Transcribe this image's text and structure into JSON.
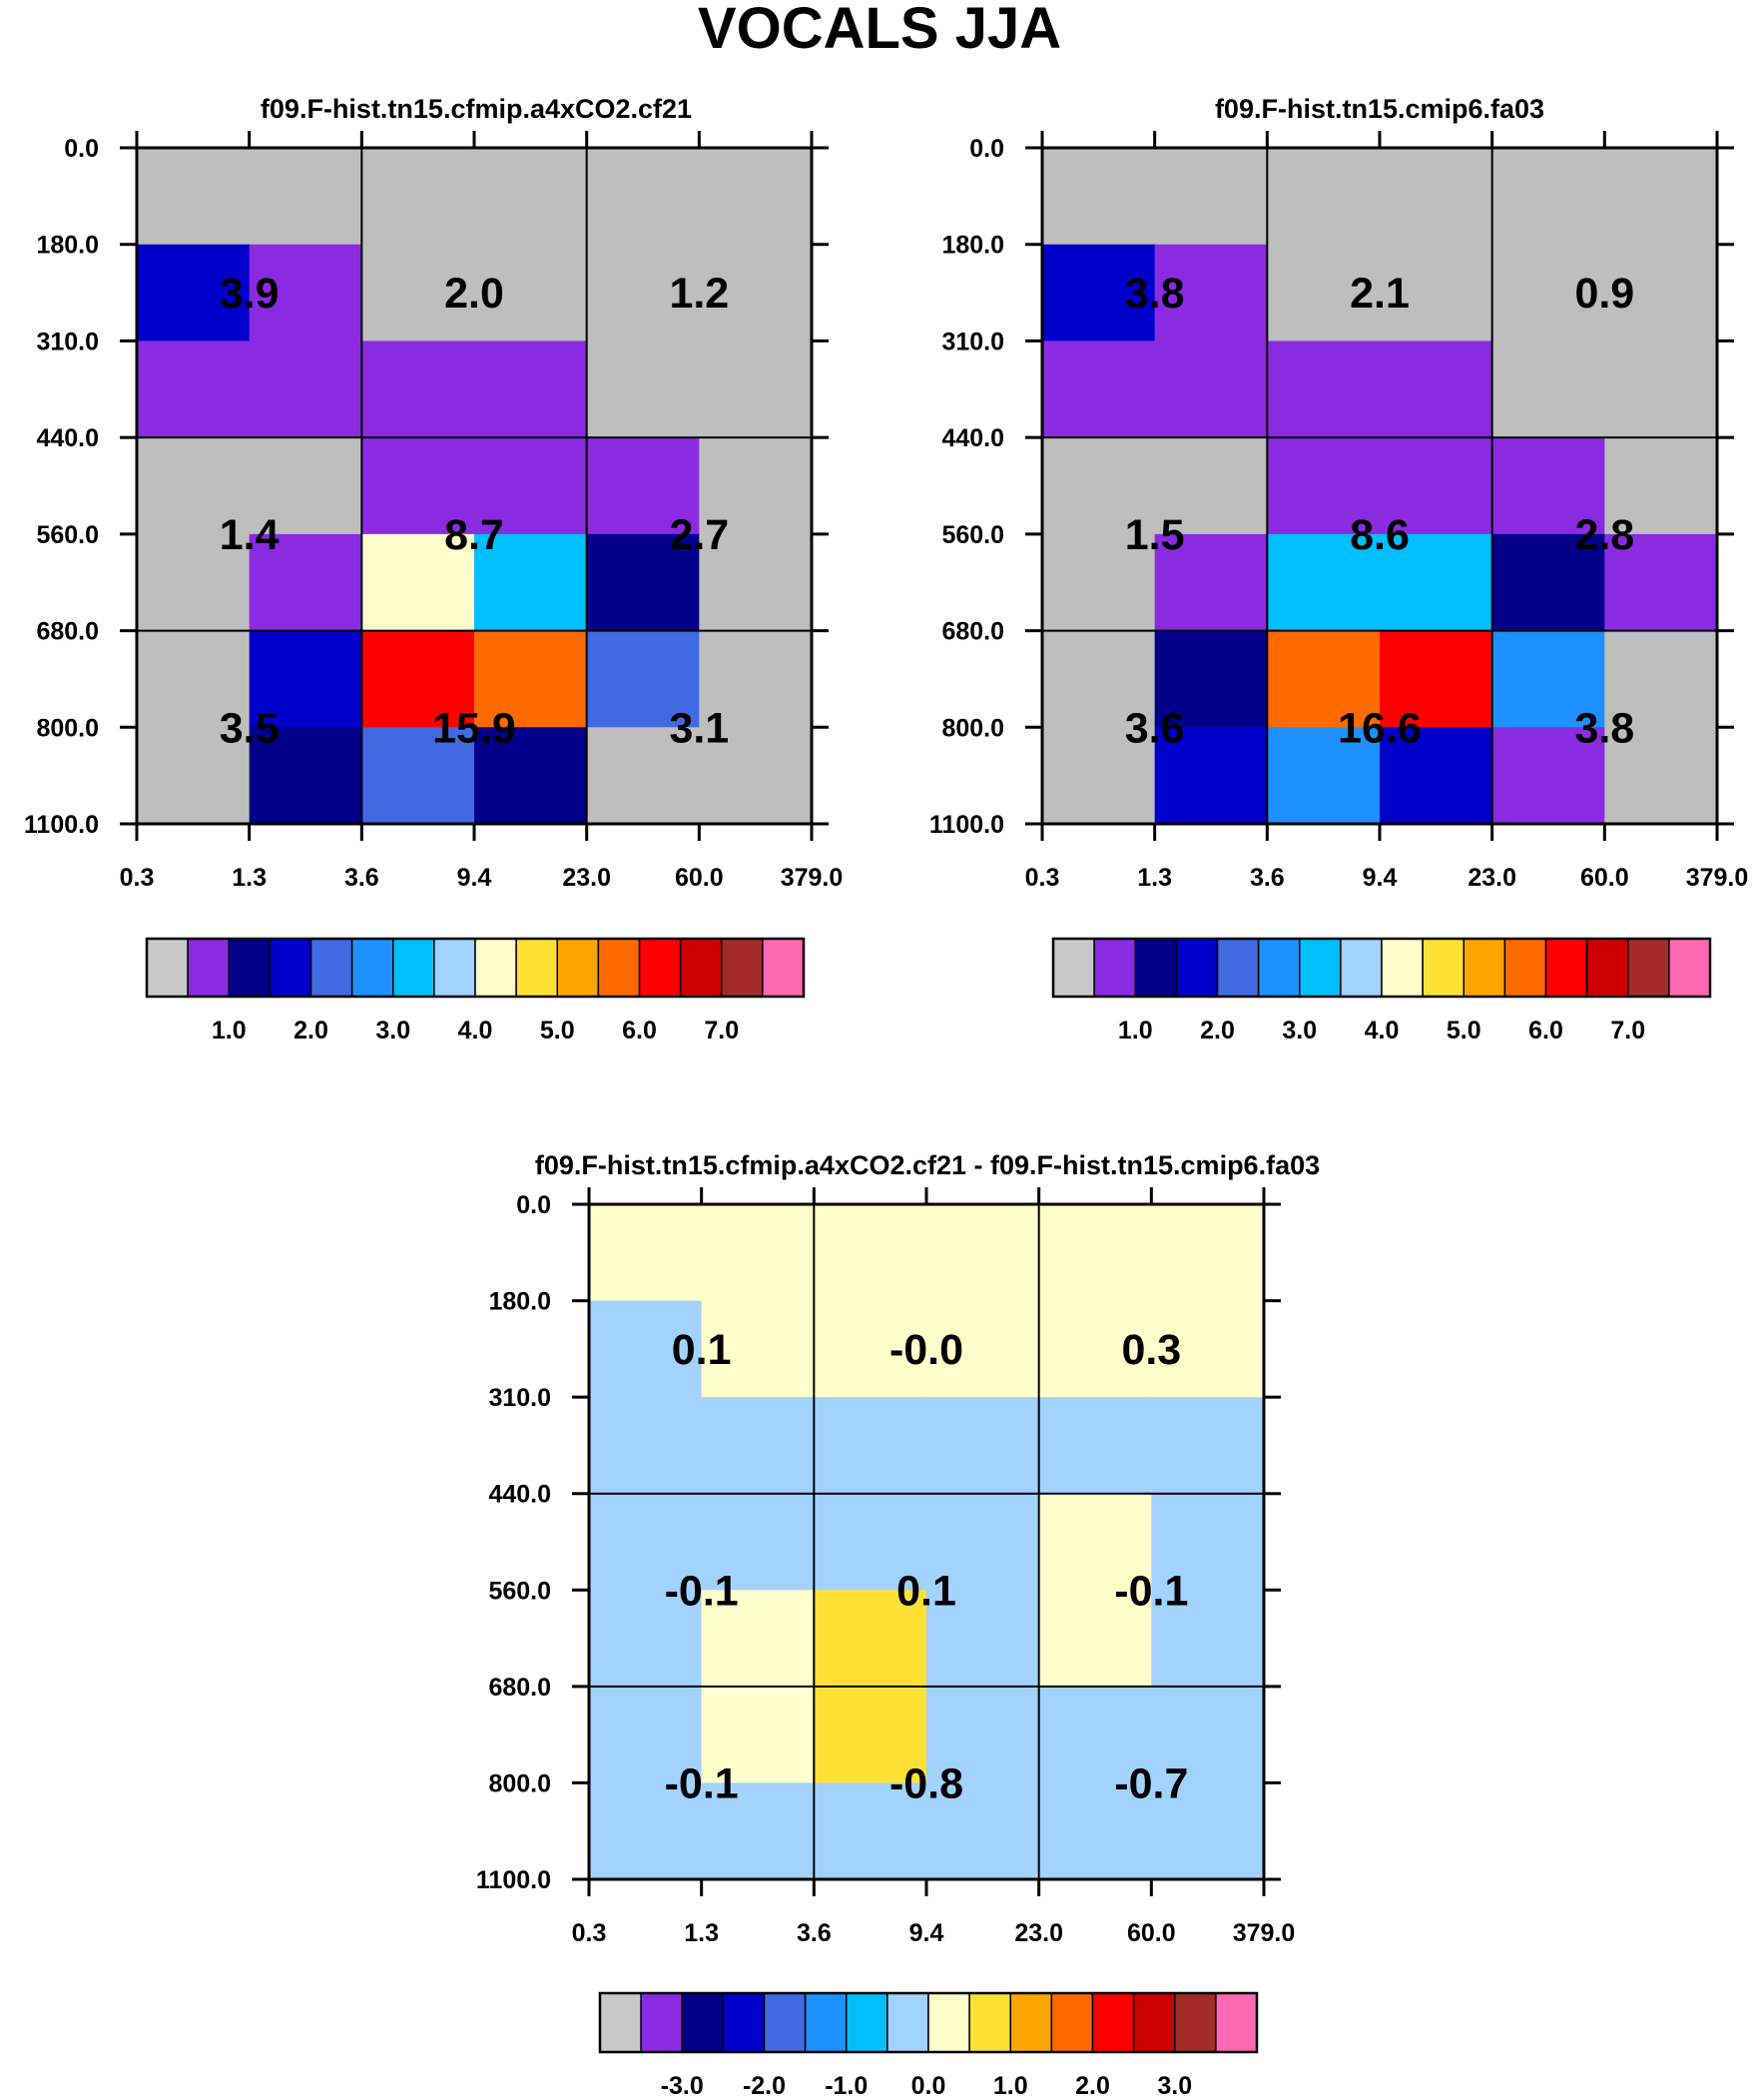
{
  "title": "VOCALS JJA",
  "chart_data": [
    {
      "type": "heatmap",
      "title": "f09.F-hist.tn15.cfmip.a4xCO2.cf21",
      "x_ticks": [
        "0.3",
        "1.3",
        "3.6",
        "9.4",
        "23.0",
        "60.0",
        "379.0"
      ],
      "y_ticks": [
        "0.0",
        "180.0",
        "310.0",
        "440.0",
        "560.0",
        "680.0",
        "800.0",
        "1100.0"
      ],
      "cell_colors": [
        [
          "#bebebe",
          "#bebebe",
          "#bebebe",
          "#bebebe",
          "#bebebe",
          "#bebebe"
        ],
        [
          "#0000cd",
          "#8a2be2",
          "#bebebe",
          "#bebebe",
          "#bebebe",
          "#bebebe"
        ],
        [
          "#8a2be2",
          "#8a2be2",
          "#8a2be2",
          "#8a2be2",
          "#bebebe",
          "#bebebe"
        ],
        [
          "#bebebe",
          "#bebebe",
          "#8a2be2",
          "#8a2be2",
          "#8a2be2",
          "#bebebe"
        ],
        [
          "#bebebe",
          "#8a2be2",
          "#ffffcc",
          "#00bfff",
          "#00008b",
          "#bebebe"
        ],
        [
          "#bebebe",
          "#0000cd",
          "#ff0000",
          "#ff6a00",
          "#4169e1",
          "#bebebe"
        ],
        [
          "#bebebe",
          "#00008b",
          "#4169e1",
          "#00008b",
          "#bebebe",
          "#bebebe"
        ]
      ],
      "box_values": [
        [
          "3.9",
          "2.0",
          "1.2"
        ],
        [
          "1.4",
          "8.7",
          "2.7"
        ],
        [
          "3.5",
          "15.9",
          "3.1"
        ]
      ]
    },
    {
      "type": "heatmap",
      "title": "f09.F-hist.tn15.cmip6.fa03",
      "x_ticks": [
        "0.3",
        "1.3",
        "3.6",
        "9.4",
        "23.0",
        "60.0",
        "379.0"
      ],
      "y_ticks": [
        "0.0",
        "180.0",
        "310.0",
        "440.0",
        "560.0",
        "680.0",
        "800.0",
        "1100.0"
      ],
      "cell_colors": [
        [
          "#bebebe",
          "#bebebe",
          "#bebebe",
          "#bebebe",
          "#bebebe",
          "#bebebe"
        ],
        [
          "#0000cd",
          "#8a2be2",
          "#bebebe",
          "#bebebe",
          "#bebebe",
          "#bebebe"
        ],
        [
          "#8a2be2",
          "#8a2be2",
          "#8a2be2",
          "#8a2be2",
          "#bebebe",
          "#bebebe"
        ],
        [
          "#bebebe",
          "#bebebe",
          "#8a2be2",
          "#8a2be2",
          "#8a2be2",
          "#bebebe"
        ],
        [
          "#bebebe",
          "#8a2be2",
          "#00bfff",
          "#00bfff",
          "#00008b",
          "#8a2be2"
        ],
        [
          "#bebebe",
          "#00008b",
          "#ff6a00",
          "#ff0000",
          "#1e90ff",
          "#bebebe"
        ],
        [
          "#bebebe",
          "#0000cd",
          "#1e90ff",
          "#0000cd",
          "#8a2be2",
          "#bebebe"
        ]
      ],
      "box_values": [
        [
          "3.8",
          "2.1",
          "0.9"
        ],
        [
          "1.5",
          "8.6",
          "2.8"
        ],
        [
          "3.6",
          "16.6",
          "3.8"
        ]
      ]
    },
    {
      "type": "heatmap",
      "title": "f09.F-hist.tn15.cfmip.a4xCO2.cf21 - f09.F-hist.tn15.cmip6.fa03",
      "x_ticks": [
        "0.3",
        "1.3",
        "3.6",
        "9.4",
        "23.0",
        "60.0",
        "379.0"
      ],
      "y_ticks": [
        "0.0",
        "180.0",
        "310.0",
        "440.0",
        "560.0",
        "680.0",
        "800.0",
        "1100.0"
      ],
      "cell_colors": [
        [
          "#ffffcc",
          "#ffffcc",
          "#ffffcc",
          "#ffffcc",
          "#ffffcc",
          "#ffffcc"
        ],
        [
          "#a2d2ff",
          "#ffffcc",
          "#ffffcc",
          "#ffffcc",
          "#ffffcc",
          "#ffffcc"
        ],
        [
          "#a2d2ff",
          "#a2d2ff",
          "#a2d2ff",
          "#a2d2ff",
          "#a2d2ff",
          "#a2d2ff"
        ],
        [
          "#a2d2ff",
          "#a2d2ff",
          "#a2d2ff",
          "#a2d2ff",
          "#ffffcc",
          "#a2d2ff"
        ],
        [
          "#a2d2ff",
          "#ffffcc",
          "#ffe135",
          "#a2d2ff",
          "#ffffcc",
          "#a2d2ff"
        ],
        [
          "#a2d2ff",
          "#ffffcc",
          "#ffe135",
          "#a2d2ff",
          "#a2d2ff",
          "#a2d2ff"
        ],
        [
          "#a2d2ff",
          "#a2d2ff",
          "#a2d2ff",
          "#a2d2ff",
          "#a2d2ff",
          "#a2d2ff"
        ]
      ],
      "box_values": [
        [
          "0.1",
          "-0.0",
          "0.3"
        ],
        [
          "-0.1",
          "0.1",
          "-0.1"
        ],
        [
          "-0.1",
          "-0.8",
          "-0.7"
        ]
      ]
    }
  ],
  "colorbars": [
    {
      "colors": [
        "#c8c8c8",
        "#8a2be2",
        "#00008b",
        "#0000cd",
        "#4169e1",
        "#1e90ff",
        "#00bfff",
        "#a2d2ff",
        "#ffffcc",
        "#ffe135",
        "#ffa500",
        "#ff6a00",
        "#ff0000",
        "#cd0000",
        "#a52a2a",
        "#ff69b4"
      ],
      "labels": [
        "1.0",
        "2.0",
        "3.0",
        "4.0",
        "5.0",
        "6.0",
        "7.0"
      ]
    },
    {
      "colors": [
        "#c8c8c8",
        "#8a2be2",
        "#00008b",
        "#0000cd",
        "#4169e1",
        "#1e90ff",
        "#00bfff",
        "#a2d2ff",
        "#ffffcc",
        "#ffe135",
        "#ffa500",
        "#ff6a00",
        "#ff0000",
        "#cd0000",
        "#a52a2a",
        "#ff69b4"
      ],
      "labels": [
        "1.0",
        "2.0",
        "3.0",
        "4.0",
        "5.0",
        "6.0",
        "7.0"
      ]
    },
    {
      "colors": [
        "#c8c8c8",
        "#8a2be2",
        "#00008b",
        "#0000cd",
        "#4169e1",
        "#1e90ff",
        "#00bfff",
        "#a2d2ff",
        "#ffffcc",
        "#ffe135",
        "#ffa500",
        "#ff6a00",
        "#ff0000",
        "#cd0000",
        "#a52a2a",
        "#ff69b4"
      ],
      "labels": [
        "-3.0",
        "-2.0",
        "-1.0",
        "0.0",
        "1.0",
        "2.0",
        "3.0"
      ]
    }
  ]
}
